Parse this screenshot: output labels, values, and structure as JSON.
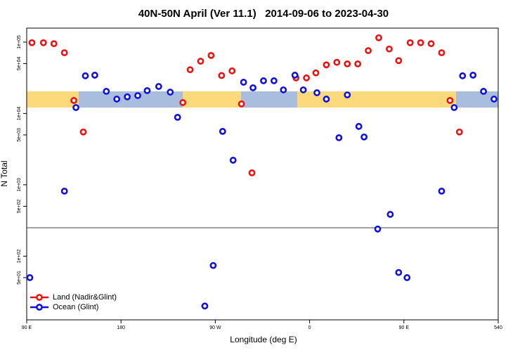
{
  "chart_data": {
    "type": "scatter",
    "title": "40N-50N April (Ver 11.1)   2014-09-06 to 2023-04-30",
    "xlabel": "Longitude (deg E)",
    "ylabel": "N Total",
    "xlim": [
      90,
      540
    ],
    "xticks": [
      {
        "value": 90,
        "label": "90 E"
      },
      180,
      {
        "value": 270,
        "label": "90 W"
      },
      {
        "value": 360,
        "label": "0"
      },
      {
        "value": 450,
        "label": "90 E"
      },
      540
    ],
    "ylim": [
      12.8,
      157000
    ],
    "log_y": true,
    "yticks": [
      {
        "value": 100000,
        "label": "1e+05"
      },
      {
        "value": 50000,
        "label": "5e+04"
      },
      {
        "value": 10000,
        "label": "1e+04"
      },
      {
        "value": 5000,
        "label": "5e+03"
      },
      {
        "value": 1000,
        "label": "1e+03"
      },
      {
        "value": 500,
        "label": "5e+02"
      },
      {
        "value": 100,
        "label": "1e+02"
      },
      {
        "value": 50,
        "label": "5e+01"
      }
    ],
    "hline": 250,
    "legend": "bottom-left",
    "series": [
      {
        "name": "Land (Nadir&Glint)",
        "color": "#ee1111",
        "x": [
          95,
          106,
          116,
          126,
          135,
          144,
          239,
          246,
          256,
          266,
          276,
          286,
          295,
          305,
          347,
          357,
          366,
          376,
          386,
          396,
          406,
          416,
          426,
          436,
          445,
          456,
          466,
          476,
          486,
          494,
          503
        ],
        "values": [
          98000,
          98000,
          95000,
          71000,
          15200,
          5500,
          14200,
          41000,
          54000,
          65000,
          34000,
          39500,
          13600,
          1470,
          31500,
          31500,
          37000,
          48000,
          52000,
          49500,
          49500,
          76000,
          115000,
          80000,
          55000,
          98000,
          98000,
          95000,
          71000,
          15200,
          5500
        ]
      },
      {
        "name": "Ocean (Glint)",
        "color": "#1111dd",
        "x": [
          93,
          126,
          137,
          146,
          155,
          166,
          176,
          186,
          196,
          205,
          216,
          227,
          234,
          260,
          268,
          277,
          287,
          297,
          306,
          316,
          326,
          335,
          346,
          354,
          367,
          376,
          388,
          396,
          407,
          412,
          425,
          437,
          445,
          453,
          486,
          498,
          506,
          516,
          526,
          536
        ],
        "values": [
          50,
          815,
          12100,
          33700,
          34400,
          20400,
          15900,
          17100,
          17800,
          20900,
          23900,
          19900,
          8830,
          20,
          74,
          5610,
          2210,
          27400,
          22900,
          28700,
          28700,
          21400,
          34400,
          21400,
          19500,
          15900,
          4570,
          18200,
          6580,
          4680,
          240,
          385,
          59,
          50,
          815,
          12100,
          33700,
          34400,
          20400,
          15900
        ]
      }
    ]
  }
}
